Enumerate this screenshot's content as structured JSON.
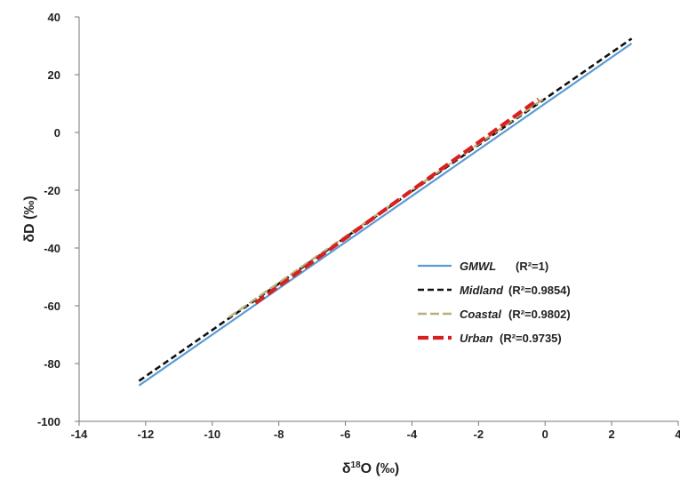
{
  "chart_data": {
    "type": "line",
    "xlabel_main": "δ",
    "xlabel_sup": "18",
    "xlabel_rest": "O (‰)",
    "ylabel": "δD (‰)",
    "xlim": [
      -14,
      4
    ],
    "ylim": [
      -100,
      40
    ],
    "xticks": [
      "-14",
      "-12",
      "-10",
      "-8",
      "-6",
      "-4",
      "-2",
      "0",
      "2",
      "4"
    ],
    "yticks": [
      "40",
      "20",
      "0",
      "-20",
      "-40",
      "-60",
      "-80",
      "-100"
    ],
    "grid": false,
    "legend_position": "right",
    "series": [
      {
        "name": "GMWL",
        "r2": "(R²=1)",
        "color": "#5b9bd5",
        "style": "solid",
        "x": [
          -12.2,
          2.6
        ],
        "y": [
          -87.6,
          30.8
        ]
      },
      {
        "name": "Midland",
        "r2": "(R²=0.9854)",
        "color": "#111111",
        "style": "dashed",
        "x": [
          -12.2,
          2.6
        ],
        "y": [
          -86.0,
          32.5
        ]
      },
      {
        "name": "Coastal",
        "r2": "(R²=0.9802)",
        "color": "#b8b078",
        "style": "dashed",
        "x": [
          -9.5,
          0.0
        ],
        "y": [
          -64.0,
          12.0
        ]
      },
      {
        "name": "Urban",
        "r2": "(R²=0.9735)",
        "color": "#d92020",
        "style": "dashed",
        "x": [
          -8.7,
          -0.2
        ],
        "y": [
          -59.0,
          11.5
        ]
      }
    ]
  }
}
